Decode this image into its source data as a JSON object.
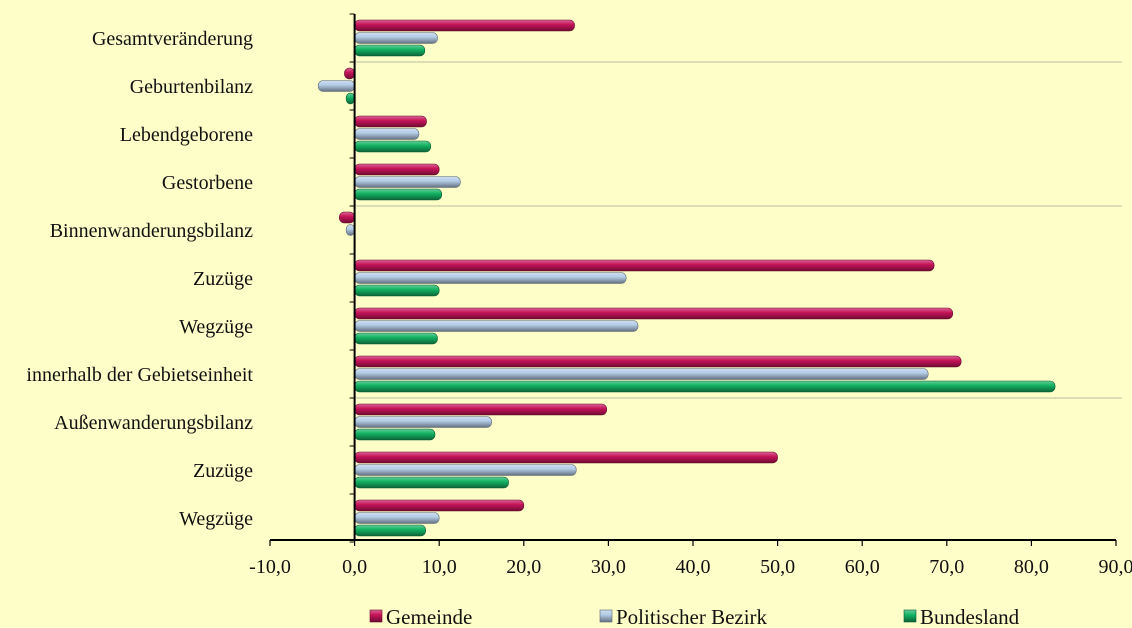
{
  "chart_data": {
    "type": "bar",
    "orientation": "horizontal",
    "categories": [
      "Gesamtveränderung",
      "Geburtenbilanz",
      "Lebendgeborene",
      "Gestorbene",
      "Binnenwanderungsbilanz",
      "Zuzüge",
      "Wegzüge",
      "innerhalb der Gebietseinheit",
      "Außenwanderungsbilanz",
      "Zuzüge",
      "Wegzüge"
    ],
    "series": [
      {
        "name": "Gemeinde",
        "color": "#c8145a",
        "values": [
          26.0,
          -1.2,
          8.5,
          10.0,
          -1.8,
          68.5,
          70.7,
          71.7,
          29.8,
          50.0,
          20.0
        ]
      },
      {
        "name": "Politischer Bezirk",
        "color": "#b4cce6",
        "values": [
          9.8,
          -4.3,
          7.6,
          12.5,
          -1.0,
          32.1,
          33.5,
          67.8,
          16.2,
          26.2,
          10.0
        ]
      },
      {
        "name": "Bundesland",
        "color": "#14b464",
        "values": [
          8.3,
          -1.0,
          9.0,
          10.3,
          0.0,
          10.0,
          9.8,
          82.8,
          9.5,
          18.2,
          8.4
        ]
      }
    ],
    "xlim": [
      -10,
      90
    ],
    "xticks": [
      "-10,0",
      "0,0",
      "10,0",
      "20,0",
      "30,0",
      "40,0",
      "50,0",
      "60,0",
      "70,0",
      "80,0",
      "90,0"
    ],
    "separators_after_category_index": [
      0,
      3,
      7
    ],
    "legend_position": "bottom",
    "grid": false,
    "title": "",
    "xlabel": "",
    "ylabel": ""
  }
}
